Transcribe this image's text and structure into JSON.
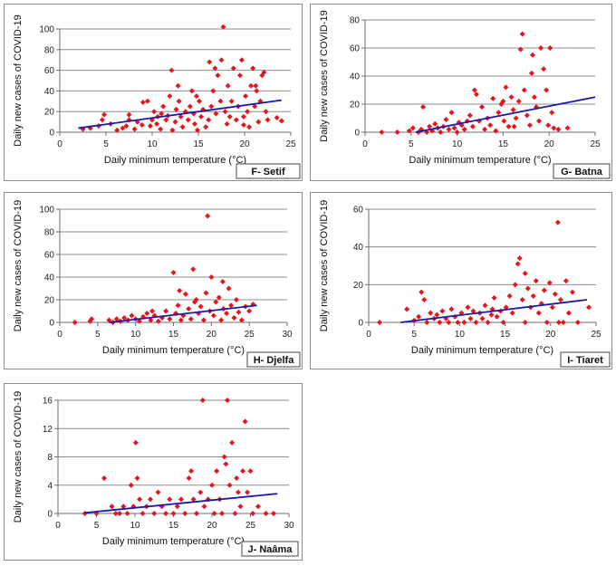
{
  "colors": {
    "points": "#e8141b",
    "trend": "#1a1aa8",
    "grid": "#8c8c8c",
    "axis": "#6e6e6e"
  },
  "chart_data": [
    {
      "id": "F",
      "type": "scatter",
      "label": "F- Setif",
      "xlabel": "Daily minimum temperature (°C)",
      "ylabel": "Daily new cases of COVID-19",
      "xlim": [
        0,
        25
      ],
      "ylim": [
        0,
        100
      ],
      "xticks": [
        0,
        5,
        10,
        15,
        20,
        25
      ],
      "yticks": [
        0,
        20,
        40,
        60,
        80,
        100
      ],
      "trend": {
        "x": [
          2,
          24
        ],
        "y": [
          4,
          31
        ]
      },
      "points": [
        [
          2.5,
          3
        ],
        [
          3.3,
          4
        ],
        [
          4.2,
          6
        ],
        [
          4.6,
          12
        ],
        [
          4.8,
          17
        ],
        [
          5.5,
          8
        ],
        [
          6.2,
          2
        ],
        [
          6.8,
          4
        ],
        [
          7.2,
          6
        ],
        [
          7.5,
          12
        ],
        [
          7.5,
          17
        ],
        [
          8.1,
          3
        ],
        [
          8.4,
          10
        ],
        [
          8.9,
          7
        ],
        [
          9,
          29
        ],
        [
          9.5,
          30
        ],
        [
          9.8,
          6
        ],
        [
          10,
          12
        ],
        [
          10.2,
          20
        ],
        [
          10.5,
          8
        ],
        [
          10.6,
          15
        ],
        [
          10.9,
          3
        ],
        [
          11,
          18
        ],
        [
          11.2,
          25
        ],
        [
          11.5,
          12
        ],
        [
          11.7,
          16
        ],
        [
          11.9,
          35
        ],
        [
          12.1,
          60
        ],
        [
          12.2,
          2
        ],
        [
          12.5,
          10
        ],
        [
          12.6,
          22
        ],
        [
          12.9,
          30
        ],
        [
          13.1,
          15
        ],
        [
          13.3,
          5
        ],
        [
          13.6,
          20
        ],
        [
          13.9,
          12
        ],
        [
          14.1,
          25
        ],
        [
          14.3,
          40
        ],
        [
          14.5,
          18
        ],
        [
          14.6,
          8
        ],
        [
          14.9,
          2
        ],
        [
          15.1,
          30
        ],
        [
          15.3,
          15
        ],
        [
          15.5,
          22
        ],
        [
          15.8,
          5
        ],
        [
          16.1,
          12
        ],
        [
          16.2,
          68
        ],
        [
          16.4,
          25
        ],
        [
          16.6,
          40
        ],
        [
          16.9,
          18
        ],
        [
          17.1,
          55
        ],
        [
          17.4,
          30
        ],
        [
          17.5,
          70
        ],
        [
          17.7,
          102
        ],
        [
          17.9,
          20
        ],
        [
          18.1,
          8
        ],
        [
          18.2,
          45
        ],
        [
          18.4,
          15
        ],
        [
          18.6,
          30
        ],
        [
          18.8,
          62
        ],
        [
          19.1,
          12
        ],
        [
          19.3,
          25
        ],
        [
          19.5,
          55
        ],
        [
          19.7,
          70
        ],
        [
          19.9,
          15
        ],
        [
          20.1,
          35
        ],
        [
          20.3,
          20
        ],
        [
          20.5,
          5
        ],
        [
          20.7,
          45
        ],
        [
          20.9,
          62
        ],
        [
          21.1,
          25
        ],
        [
          21.3,
          40
        ],
        [
          21.5,
          10
        ],
        [
          21.7,
          30
        ],
        [
          21.9,
          55
        ],
        [
          22.1,
          58
        ],
        [
          22.3,
          20
        ],
        [
          22.5,
          12
        ],
        [
          23.5,
          14
        ],
        [
          24,
          11
        ],
        [
          12.8,
          45
        ],
        [
          14.8,
          35
        ],
        [
          16.8,
          62
        ],
        [
          19.9,
          7
        ],
        [
          21.2,
          45
        ]
      ]
    },
    {
      "id": "G",
      "type": "scatter",
      "label": "G- Batna",
      "xlabel": "Daily minimum temperature (°C)",
      "ylabel": "Daily new cases of COVID-19",
      "xlim": [
        0,
        25
      ],
      "ylim": [
        0,
        80
      ],
      "xticks": [
        0,
        5,
        10,
        15,
        20,
        25
      ],
      "yticks": [
        0,
        20,
        40,
        60,
        80
      ],
      "trend": {
        "x": [
          5.5,
          25
        ],
        "y": [
          0,
          25
        ]
      },
      "points": [
        [
          1.8,
          0
        ],
        [
          3.5,
          0
        ],
        [
          4.8,
          1
        ],
        [
          5.2,
          3
        ],
        [
          5.8,
          0
        ],
        [
          6.1,
          2
        ],
        [
          6.3,
          18
        ],
        [
          6.7,
          0
        ],
        [
          7,
          4
        ],
        [
          7.3,
          1
        ],
        [
          7.6,
          6
        ],
        [
          7.9,
          3
        ],
        [
          8.2,
          0
        ],
        [
          8.5,
          4
        ],
        [
          8.8,
          9
        ],
        [
          9.1,
          2
        ],
        [
          9.4,
          14
        ],
        [
          9.7,
          3
        ],
        [
          10,
          0
        ],
        [
          10.2,
          7
        ],
        [
          10.5,
          5
        ],
        [
          10.8,
          2
        ],
        [
          11.1,
          8
        ],
        [
          11.4,
          12
        ],
        [
          11.7,
          4
        ],
        [
          11.9,
          30
        ],
        [
          12.1,
          27
        ],
        [
          12.4,
          8
        ],
        [
          12.7,
          18
        ],
        [
          13,
          2
        ],
        [
          13.3,
          10
        ],
        [
          13.6,
          5
        ],
        [
          13.9,
          24
        ],
        [
          14.2,
          1
        ],
        [
          14.5,
          14
        ],
        [
          14.8,
          20
        ],
        [
          15.1,
          8
        ],
        [
          15.3,
          32
        ],
        [
          15.6,
          4
        ],
        [
          15.9,
          25
        ],
        [
          16.1,
          16
        ],
        [
          16.4,
          10
        ],
        [
          16.7,
          22
        ],
        [
          16.9,
          59
        ],
        [
          17.1,
          70
        ],
        [
          17.3,
          30
        ],
        [
          17.6,
          12
        ],
        [
          17.9,
          5
        ],
        [
          18.1,
          42
        ],
        [
          18.4,
          25
        ],
        [
          18.6,
          18
        ],
        [
          18.9,
          8
        ],
        [
          19.1,
          60
        ],
        [
          19.4,
          45
        ],
        [
          19.7,
          30
        ],
        [
          19.9,
          5
        ],
        [
          20.1,
          60
        ],
        [
          20.3,
          14
        ],
        [
          20.5,
          3
        ],
        [
          21,
          2
        ],
        [
          22,
          3
        ],
        [
          15,
          22
        ],
        [
          16.2,
          4
        ],
        [
          18.2,
          55
        ]
      ]
    },
    {
      "id": "H",
      "type": "scatter",
      "label": "H- Djelfa",
      "xlabel": "Daily minimum temperature (°C)",
      "ylabel": "Daily new cases of COVID-19",
      "xlim": [
        0,
        30
      ],
      "ylim": [
        0,
        100
      ],
      "xticks": [
        0,
        5,
        10,
        15,
        20,
        25,
        30
      ],
      "yticks": [
        0,
        20,
        40,
        60,
        80,
        100
      ],
      "trend": {
        "x": [
          6.5,
          26
        ],
        "y": [
          0,
          15
        ]
      },
      "points": [
        [
          2,
          0
        ],
        [
          4,
          1
        ],
        [
          4.2,
          3
        ],
        [
          6.5,
          2
        ],
        [
          7,
          0
        ],
        [
          7.5,
          3
        ],
        [
          8,
          1
        ],
        [
          8.5,
          4
        ],
        [
          9,
          2
        ],
        [
          9.5,
          6
        ],
        [
          10,
          3
        ],
        [
          10.5,
          1
        ],
        [
          11,
          5
        ],
        [
          11.5,
          8
        ],
        [
          12,
          2
        ],
        [
          12.5,
          6
        ],
        [
          13,
          1
        ],
        [
          13.5,
          4
        ],
        [
          14,
          10
        ],
        [
          14.5,
          3
        ],
        [
          15,
          44
        ],
        [
          15.3,
          8
        ],
        [
          15.6,
          15
        ],
        [
          16,
          2
        ],
        [
          16.3,
          6
        ],
        [
          16.6,
          25
        ],
        [
          17,
          12
        ],
        [
          17.3,
          3
        ],
        [
          17.6,
          47
        ],
        [
          18,
          20
        ],
        [
          18.3,
          8
        ],
        [
          18.6,
          14
        ],
        [
          19,
          2
        ],
        [
          19.3,
          26
        ],
        [
          19.5,
          94
        ],
        [
          19.8,
          10
        ],
        [
          20,
          40
        ],
        [
          20.3,
          6
        ],
        [
          20.6,
          18
        ],
        [
          21,
          22
        ],
        [
          21.3,
          2
        ],
        [
          21.6,
          12
        ],
        [
          22,
          8
        ],
        [
          22.3,
          30
        ],
        [
          22.6,
          15
        ],
        [
          23,
          4
        ],
        [
          23.3,
          20
        ],
        [
          23.6,
          9
        ],
        [
          24,
          2
        ],
        [
          24.5,
          14
        ],
        [
          25,
          10
        ],
        [
          25.5,
          16
        ],
        [
          12.2,
          10
        ],
        [
          15.8,
          28
        ],
        [
          17.8,
          18
        ],
        [
          21.5,
          36
        ]
      ]
    },
    {
      "id": "I",
      "type": "scatter",
      "label": "I- Tiaret",
      "xlabel": "Daily minimum temperature (°C)",
      "ylabel": "Daily new cases of COVID-19",
      "xlim": [
        0,
        25
      ],
      "ylim": [
        0,
        60
      ],
      "xticks": [
        0,
        5,
        10,
        15,
        20,
        25
      ],
      "yticks": [
        0,
        20,
        40,
        60
      ],
      "trend": {
        "x": [
          3.5,
          24
        ],
        "y": [
          0,
          12
        ]
      },
      "points": [
        [
          1.2,
          0
        ],
        [
          4.2,
          7
        ],
        [
          5,
          1
        ],
        [
          5.5,
          3
        ],
        [
          5.8,
          16
        ],
        [
          6.1,
          12
        ],
        [
          6.4,
          0
        ],
        [
          6.8,
          5
        ],
        [
          7.2,
          2
        ],
        [
          7.5,
          4
        ],
        [
          7.8,
          0
        ],
        [
          8.1,
          6
        ],
        [
          8.5,
          2
        ],
        [
          8.8,
          0
        ],
        [
          9.1,
          7
        ],
        [
          9.5,
          3
        ],
        [
          9.8,
          0
        ],
        [
          10.2,
          5
        ],
        [
          10.5,
          0
        ],
        [
          10.9,
          8
        ],
        [
          11.2,
          2
        ],
        [
          11.5,
          6
        ],
        [
          11.8,
          0
        ],
        [
          12.2,
          5
        ],
        [
          12.5,
          2
        ],
        [
          12.8,
          9
        ],
        [
          13.1,
          0
        ],
        [
          13.5,
          4
        ],
        [
          13.8,
          13
        ],
        [
          14.1,
          3
        ],
        [
          14.5,
          6
        ],
        [
          14.8,
          0
        ],
        [
          15.1,
          8
        ],
        [
          15.5,
          14
        ],
        [
          15.8,
          5
        ],
        [
          16.1,
          20
        ],
        [
          16.4,
          31
        ],
        [
          16.6,
          34
        ],
        [
          16.9,
          12
        ],
        [
          17.2,
          0
        ],
        [
          17.5,
          18
        ],
        [
          17.8,
          8
        ],
        [
          18.1,
          14
        ],
        [
          18.4,
          22
        ],
        [
          18.7,
          5
        ],
        [
          19,
          10
        ],
        [
          19.3,
          17
        ],
        [
          19.6,
          0
        ],
        [
          19.9,
          21
        ],
        [
          20.2,
          8
        ],
        [
          20.5,
          15
        ],
        [
          20.8,
          53
        ],
        [
          21.1,
          12
        ],
        [
          21.4,
          0
        ],
        [
          21.7,
          22
        ],
        [
          22,
          5
        ],
        [
          22.4,
          16
        ],
        [
          23,
          0
        ],
        [
          24.2,
          8
        ],
        [
          13.6,
          7
        ],
        [
          17.2,
          26
        ],
        [
          20.9,
          0
        ]
      ]
    },
    {
      "id": "J",
      "type": "scatter",
      "label": "J- Naâma",
      "xlabel": "Daily minimum temperature (°C)",
      "ylabel": "Daily new cases of COVID-19",
      "xlim": [
        0,
        30
      ],
      "ylim": [
        0,
        16
      ],
      "xticks": [
        0,
        5,
        10,
        15,
        20,
        25,
        30
      ],
      "yticks": [
        0,
        4,
        8,
        12,
        16
      ],
      "yticks_labeled": [
        0,
        4,
        8,
        12,
        16
      ],
      "trend": {
        "x": [
          3.5,
          28.5
        ],
        "y": [
          0.1,
          2.8
        ]
      },
      "points": [
        [
          3.5,
          0
        ],
        [
          5,
          0
        ],
        [
          6,
          5
        ],
        [
          7,
          1
        ],
        [
          7.5,
          0
        ],
        [
          8,
          0
        ],
        [
          8.5,
          1
        ],
        [
          9,
          0
        ],
        [
          9.5,
          4
        ],
        [
          9.8,
          1
        ],
        [
          10.1,
          10
        ],
        [
          10.3,
          5
        ],
        [
          10.6,
          2
        ],
        [
          11,
          0
        ],
        [
          11.5,
          1
        ],
        [
          12,
          2
        ],
        [
          12.5,
          0
        ],
        [
          13,
          3
        ],
        [
          13.5,
          1
        ],
        [
          14,
          0
        ],
        [
          14.5,
          2
        ],
        [
          15,
          0
        ],
        [
          15.5,
          1
        ],
        [
          16,
          2
        ],
        [
          16.5,
          0
        ],
        [
          17,
          5
        ],
        [
          17.3,
          6
        ],
        [
          17.6,
          2
        ],
        [
          18,
          0
        ],
        [
          18.5,
          3
        ],
        [
          18.8,
          16
        ],
        [
          19,
          1
        ],
        [
          19.5,
          2
        ],
        [
          20,
          4
        ],
        [
          20.3,
          0
        ],
        [
          20.6,
          6
        ],
        [
          21,
          2
        ],
        [
          21.3,
          0
        ],
        [
          21.6,
          8
        ],
        [
          22,
          16
        ],
        [
          22.3,
          4
        ],
        [
          22.6,
          10
        ],
        [
          23,
          0
        ],
        [
          23.4,
          3
        ],
        [
          23.7,
          1
        ],
        [
          24,
          6
        ],
        [
          24.3,
          13
        ],
        [
          24.6,
          3
        ],
        [
          25,
          6
        ],
        [
          25.3,
          0
        ],
        [
          26,
          1
        ],
        [
          27,
          0
        ],
        [
          28,
          0
        ],
        [
          21.8,
          7
        ],
        [
          23.2,
          5
        ]
      ]
    }
  ]
}
